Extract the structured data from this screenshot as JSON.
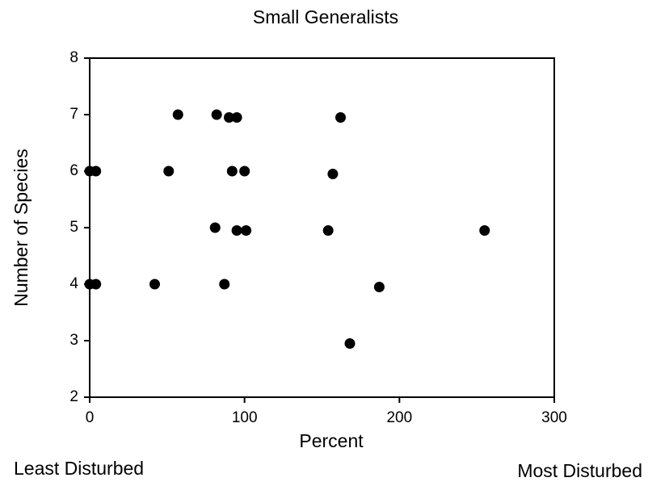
{
  "chart_data": {
    "type": "scatter",
    "title": "Small Generalists",
    "x_label": "Percent",
    "y_label": "Number of Species",
    "annotations": [
      "Least Disturbed",
      "Most Disturbed"
    ],
    "color": "#000000",
    "x": [
      57,
      82,
      90,
      95,
      162,
      0,
      4,
      51,
      92,
      100,
      157,
      81,
      95,
      101,
      154,
      255,
      0,
      4,
      42,
      87,
      187,
      168
    ],
    "values": [
      7,
      7,
      6.95,
      6.95,
      6.95,
      6,
      6,
      6,
      6,
      6,
      5.95,
      5,
      4.95,
      4.95,
      4.95,
      4.95,
      4,
      4,
      4,
      4,
      3.95,
      2.95
    ],
    "xlim": [
      0,
      300
    ],
    "xticks": [
      0,
      100,
      200,
      300
    ],
    "ylim": [
      2,
      8
    ],
    "yticks": [
      2,
      3,
      4,
      5,
      6,
      7,
      8
    ]
  }
}
